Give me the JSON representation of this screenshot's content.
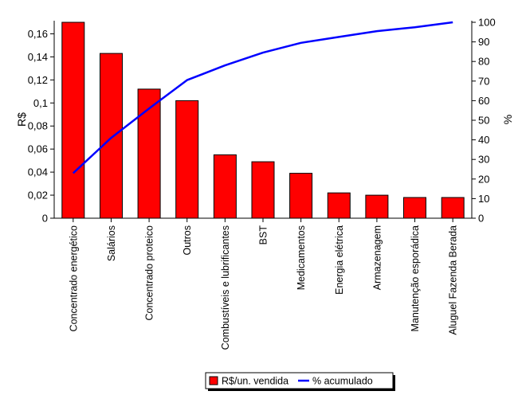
{
  "chart_data": {
    "type": "bar",
    "categories": [
      "Concentrado energético",
      "Salários",
      "Concentrado proteico",
      "Outros",
      "Combustíveis e lubrificantes",
      "BST",
      "Medicamentos",
      "Energia elétrica",
      "Armazenagem",
      "Manutenção esporádica",
      "Aluguel Fazenda Berada"
    ],
    "series": [
      {
        "name": "R$/un. vendida",
        "type": "bar",
        "axis": "left",
        "color": "#ff0000",
        "values": [
          0.17,
          0.143,
          0.112,
          0.102,
          0.055,
          0.049,
          0.039,
          0.022,
          0.02,
          0.018,
          0.018
        ]
      },
      {
        "name": "% acumulado",
        "type": "line",
        "axis": "right",
        "color": "#0000ff",
        "values": [
          23,
          41,
          56,
          70.5,
          78,
          84.5,
          89.5,
          92.5,
          95.5,
          97.5,
          100
        ]
      }
    ],
    "ylabel": "R$",
    "ylim": [
      0,
      0.17
    ],
    "yticks": [
      "0",
      "0,02",
      "0,04",
      "0,06",
      "0,08",
      "0,1",
      "0,12",
      "0,14",
      "0,16"
    ],
    "y2label": "%",
    "y2lim": [
      0,
      100
    ],
    "y2ticks": [
      "0",
      "10",
      "20",
      "30",
      "40",
      "50",
      "60",
      "70",
      "80",
      "90",
      "100"
    ],
    "legend_position": "bottom-center",
    "grid": false
  }
}
